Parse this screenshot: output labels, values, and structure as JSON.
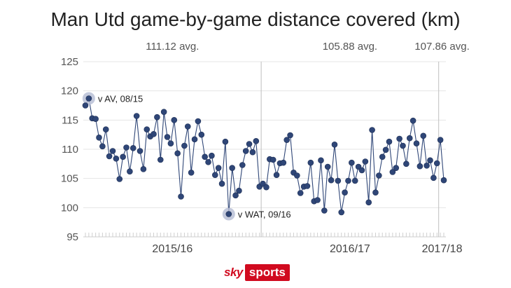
{
  "chart_data": {
    "type": "scatter",
    "title": "Man Utd game-by-game distance covered (km)",
    "xlabel": "",
    "ylabel": "",
    "ylim": [
      95,
      125
    ],
    "yticks": [
      95,
      100,
      105,
      110,
      115,
      120,
      125
    ],
    "grid": true,
    "series_connected": true,
    "seasons": [
      {
        "label": "2015/16",
        "avg_label": "111.12 avg."
      },
      {
        "label": "2016/17",
        "avg_label": "105.88 avg."
      },
      {
        "label": "2017/18",
        "avg_label": "107.86 avg."
      }
    ],
    "season_boundaries_after_game": [
      52,
      104
    ],
    "values": [
      117.5,
      118.7,
      115.3,
      115.2,
      112.0,
      110.5,
      113.4,
      108.8,
      109.7,
      108.4,
      104.9,
      108.7,
      110.3,
      106.2,
      110.2,
      115.7,
      109.7,
      106.6,
      113.4,
      112.2,
      112.6,
      115.5,
      108.2,
      116.4,
      112.1,
      111.0,
      115.0,
      109.3,
      101.9,
      110.6,
      113.9,
      106.0,
      111.7,
      114.8,
      112.5,
      108.7,
      107.8,
      108.9,
      105.6,
      106.8,
      104.1,
      111.3,
      98.9,
      106.8,
      102.1,
      102.9,
      107.3,
      109.7,
      110.9,
      109.5,
      111.4,
      103.6,
      104.1,
      103.5,
      108.3,
      108.2,
      105.6,
      107.6,
      107.7,
      111.6,
      112.4,
      106.0,
      105.5,
      102.5,
      103.6,
      103.7,
      107.7,
      101.1,
      101.3,
      108.1,
      99.5,
      107.0,
      104.7,
      110.8,
      104.6,
      99.2,
      102.6,
      104.6,
      107.7,
      104.6,
      107.0,
      106.4,
      107.9,
      100.9,
      113.3,
      102.6,
      105.5,
      108.7,
      109.9,
      111.3,
      106.1,
      106.8,
      111.8,
      110.6,
      107.5,
      111.9,
      114.9,
      111.0,
      107.1,
      112.3,
      107.2,
      108.1,
      105.1,
      107.6,
      111.6,
      104.7
    ],
    "highlights": [
      {
        "index": 1,
        "label": "v AV, 08/15"
      },
      {
        "index": 42,
        "label": "v WAT, 09/16"
      }
    ],
    "colors": {
      "point": "#2f4677",
      "line": "#2f4677",
      "halo": "#b9c0d6",
      "grid": "#e4e4e4",
      "divider": "#bfbfbf"
    }
  },
  "branding": {
    "logo_left": "sky",
    "logo_right": "sports"
  }
}
